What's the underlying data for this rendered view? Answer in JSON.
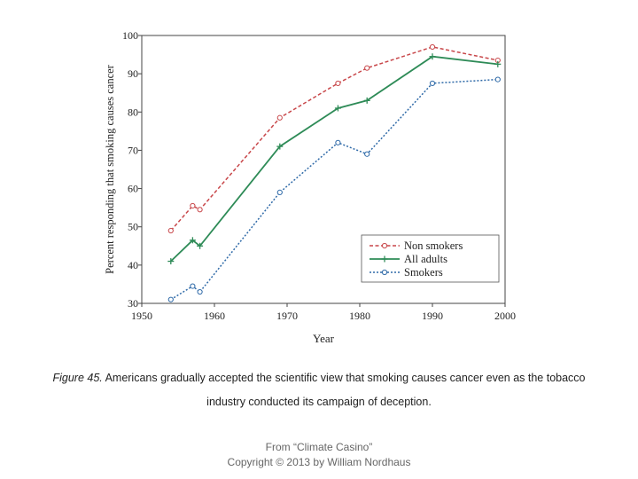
{
  "chart_data": {
    "type": "line",
    "title": "",
    "xlabel": "Year",
    "ylabel": "Percent responding that smoking causes cancer",
    "xlim": [
      1950,
      2000
    ],
    "ylim": [
      30,
      100
    ],
    "xticks": [
      "1950",
      "1960",
      "1970",
      "1980",
      "1990",
      "2000"
    ],
    "yticks": [
      "30",
      "40",
      "50",
      "60",
      "70",
      "80",
      "90",
      "100"
    ],
    "grid": false,
    "legend_position": "bottom-right",
    "series": [
      {
        "name": "Non smokers",
        "color": "#c8474a",
        "marker": "circle",
        "style": "dashed",
        "x": [
          1954,
          1957,
          1958,
          1969,
          1977,
          1981,
          1990,
          1999
        ],
        "y": [
          49,
          55.5,
          54.5,
          78.5,
          87.5,
          91.5,
          97,
          93.5
        ]
      },
      {
        "name": "All adults",
        "color": "#2e8b57",
        "marker": "plus",
        "style": "solid",
        "x": [
          1954,
          1957,
          1958,
          1969,
          1977,
          1981,
          1990,
          1999
        ],
        "y": [
          41,
          46.5,
          45,
          71,
          81,
          83,
          94.5,
          92.5
        ]
      },
      {
        "name": "Smokers",
        "color": "#2f6aa8",
        "marker": "circle",
        "style": "dotted",
        "x": [
          1954,
          1957,
          1958,
          1969,
          1977,
          1981,
          1990,
          1999
        ],
        "y": [
          31,
          34.5,
          33,
          59,
          72,
          69,
          87.5,
          88.5
        ]
      }
    ]
  },
  "caption": {
    "label": "Figure 45.",
    "line1": "Americans gradually accepted the scientific view that smoking causes cancer even as the tobacco",
    "line2": "industry conducted its campaign of deception."
  },
  "credit": {
    "line1": "From “Climate Casino”",
    "line2": "Copyright © 2013 by William Nordhaus"
  }
}
